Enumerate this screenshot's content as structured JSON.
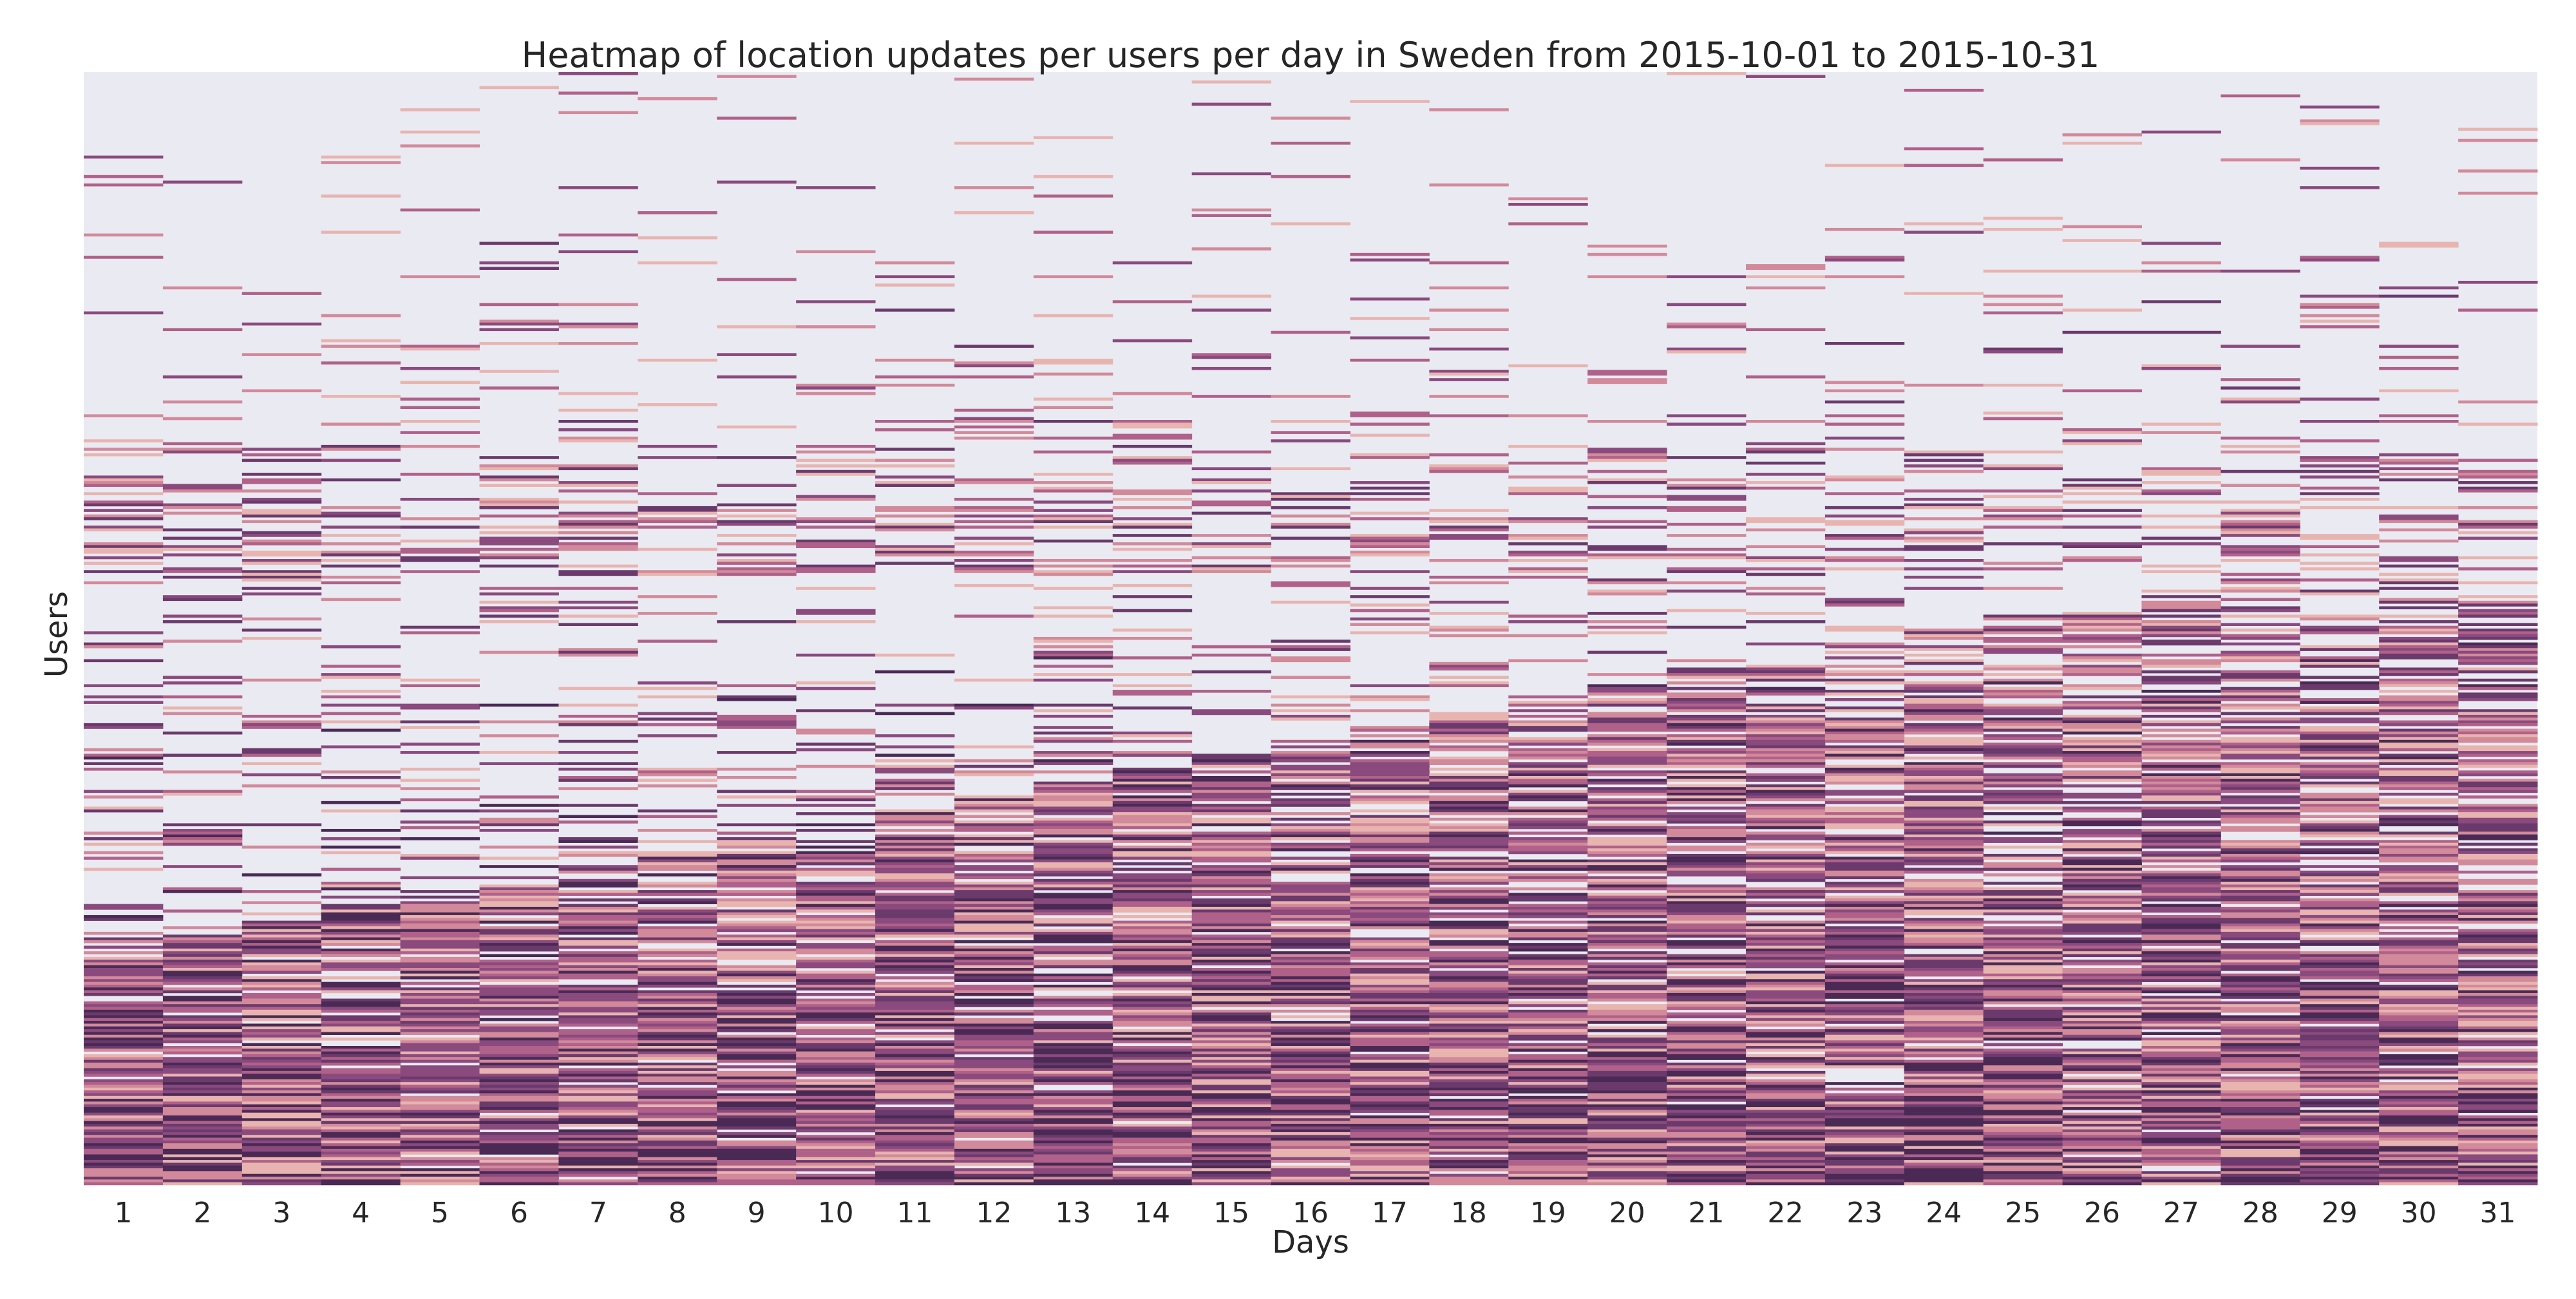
{
  "chart_data": {
    "type": "heatmap",
    "title": "Heatmap of location updates per users per day in Sweden from 2015-10-01 to 2015-10-31",
    "xlabel": "Days",
    "ylabel": "Users",
    "x_ticks": [
      "1",
      "2",
      "3",
      "4",
      "5",
      "6",
      "7",
      "8",
      "9",
      "10",
      "11",
      "12",
      "13",
      "14",
      "15",
      "16",
      "17",
      "18",
      "19",
      "20",
      "21",
      "22",
      "23",
      "24",
      "25",
      "26",
      "27",
      "28",
      "29",
      "30",
      "31"
    ],
    "y_ticks": [],
    "colorbar": false,
    "background_color": "#eaeaf2",
    "colormap": [
      "#e8b4b0",
      "#d28a9a",
      "#b0618a",
      "#8a4a7e",
      "#6b3a6c",
      "#4a2a55"
    ],
    "n_users_approx": 400,
    "value_scale": "count of location updates, 0 (no data) shown as background, low = light pink, high = dark purple",
    "user_first_active_day": [
      1,
      1,
      1,
      1,
      1,
      1,
      1,
      1,
      1,
      1,
      1,
      1,
      2,
      2,
      3,
      3,
      4,
      4,
      5,
      5,
      6,
      6,
      7,
      7,
      8,
      8,
      9,
      9,
      10,
      10,
      11,
      11,
      12,
      12,
      13,
      13,
      14,
      14,
      15,
      15,
      16,
      16,
      17,
      17,
      18,
      18,
      19,
      19,
      20,
      20,
      21,
      21,
      22,
      22,
      23,
      23,
      24,
      24,
      25,
      25,
      26,
      26,
      27,
      27,
      28,
      28,
      29,
      29,
      30,
      30,
      31
    ],
    "activity_profile": {
      "description": "Users sorted so that sparse users are at top and users active on most days are at the bottom; density increases toward the bottom of the chart",
      "bottom_band_full_activity": true
    }
  }
}
